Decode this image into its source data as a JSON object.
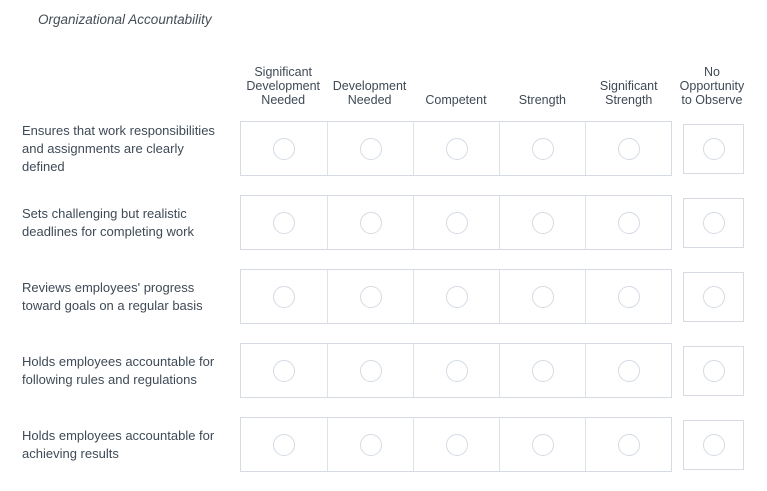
{
  "section": {
    "title": "Organizational Accountability"
  },
  "matrix": {
    "columns": [
      {
        "label": "Significant Development Needed"
      },
      {
        "label": "Development Needed"
      },
      {
        "label": "Competent"
      },
      {
        "label": "Strength"
      },
      {
        "label": "Significant Strength"
      },
      {
        "label": "No Opportunity to Observe"
      }
    ],
    "rows": [
      {
        "label": "Ensures that work responsibilities and assignments are clearly defined"
      },
      {
        "label": "Sets challenging but realistic deadlines for completing work"
      },
      {
        "label": "Reviews employees' progress toward goals on a regular basis"
      },
      {
        "label": "Holds employees accountable for following rules and regulations"
      },
      {
        "label": "Holds employees accountable for achieving results"
      }
    ]
  },
  "colors": {
    "text": "#3e4a56",
    "cell_border": "#d6dbe3",
    "radio_border": "#d4dae4",
    "background": "#ffffff"
  }
}
